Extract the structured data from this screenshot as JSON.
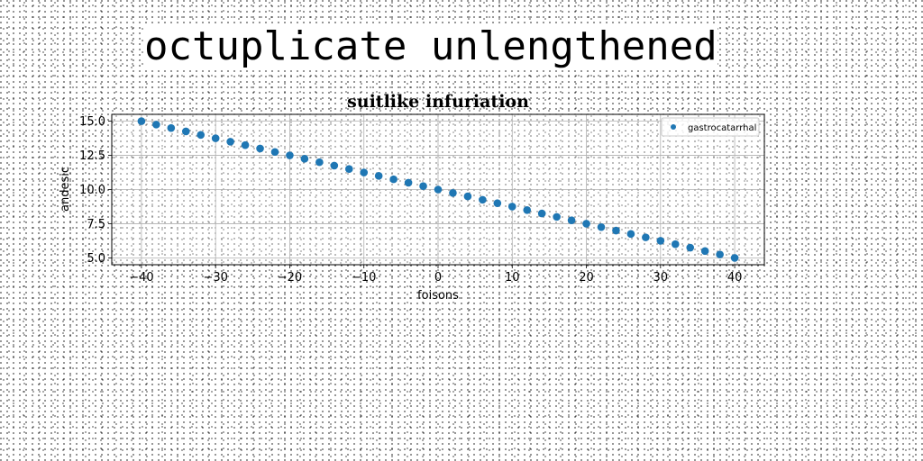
{
  "heading": "octuplicate unlengthened",
  "chart_data": {
    "type": "scatter",
    "title": "suitlike infuriation",
    "xlabel": "foisons",
    "ylabel": "andesic",
    "xlim": [
      -44,
      44
    ],
    "ylim": [
      4.5,
      15.5
    ],
    "xticks": [
      -40,
      -30,
      -20,
      -10,
      0,
      10,
      20,
      30,
      40
    ],
    "xtick_labels": [
      "−40",
      "−30",
      "−20",
      "−10",
      "0",
      "10",
      "20",
      "30",
      "40"
    ],
    "yticks": [
      5.0,
      7.5,
      10.0,
      12.5,
      15.0
    ],
    "ytick_labels": [
      "5.0",
      "7.5",
      "10.0",
      "12.5",
      "15.0"
    ],
    "grid": true,
    "legend_position": "top-right",
    "series": [
      {
        "name": "gastrocatarrhal",
        "color": "#1f77b4",
        "x": [
          -40,
          -38,
          -36,
          -34,
          -32,
          -30,
          -28,
          -26,
          -24,
          -22,
          -20,
          -18,
          -16,
          -14,
          -12,
          -10,
          -8,
          -6,
          -4,
          -2,
          0,
          2,
          4,
          6,
          8,
          10,
          12,
          14,
          16,
          18,
          20,
          22,
          24,
          26,
          28,
          30,
          32,
          34,
          36,
          38,
          40
        ],
        "y": [
          15.0,
          14.75,
          14.5,
          14.25,
          14.0,
          13.75,
          13.5,
          13.25,
          13.0,
          12.75,
          12.5,
          12.25,
          12.0,
          11.75,
          11.5,
          11.25,
          11.0,
          10.75,
          10.5,
          10.25,
          10.0,
          9.75,
          9.5,
          9.25,
          9.0,
          8.75,
          8.5,
          8.25,
          8.0,
          7.75,
          7.5,
          7.25,
          7.0,
          6.75,
          6.5,
          6.25,
          6.0,
          5.75,
          5.5,
          5.25,
          5.0
        ]
      }
    ]
  }
}
